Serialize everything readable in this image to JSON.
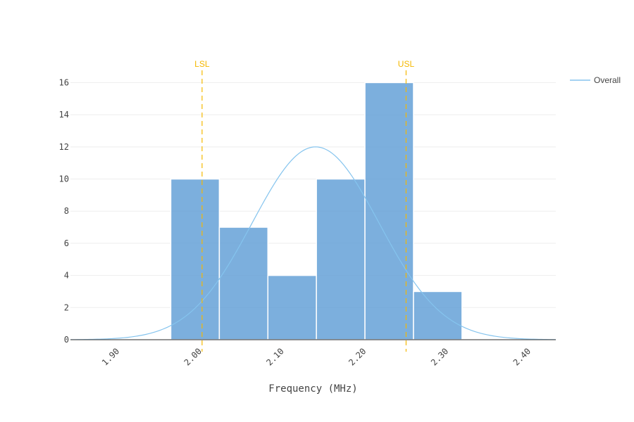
{
  "chart_data": {
    "type": "bar",
    "xlabel": "Frequency (MHz)",
    "ylabel": "",
    "xlim": [
      1.84,
      2.43
    ],
    "ylim": [
      0,
      17.2
    ],
    "x_ticks": [
      1.9,
      2.0,
      2.1,
      2.2,
      2.3,
      2.4
    ],
    "x_tick_labels": [
      "1.90",
      "2.00",
      "2.10",
      "2.20",
      "2.30",
      "2.40"
    ],
    "y_ticks": [
      0,
      2,
      4,
      6,
      8,
      10,
      12,
      14,
      16
    ],
    "y_tick_labels": [
      "0",
      "2",
      "4",
      "6",
      "8",
      "10",
      "12",
      "14",
      "16"
    ],
    "grid": true,
    "bins": [
      {
        "x0": 1.962,
        "x1": 2.021,
        "count": 10
      },
      {
        "x0": 2.021,
        "x1": 2.08,
        "count": 7
      },
      {
        "x0": 2.08,
        "x1": 2.139,
        "count": 4
      },
      {
        "x0": 2.139,
        "x1": 2.198,
        "count": 10
      },
      {
        "x0": 2.198,
        "x1": 2.257,
        "count": 16
      },
      {
        "x0": 2.257,
        "x1": 2.316,
        "count": 3
      }
    ],
    "bar_color": "#5b9bd5",
    "series": [
      {
        "name": "Overall",
        "type": "line",
        "distribution": "normal",
        "mean": 2.138,
        "std": 0.077,
        "peak": 12.0,
        "color": "#85c4ee"
      }
    ],
    "spec_limits": [
      {
        "label": "LSL",
        "x": 2.0,
        "color": "#f5b800"
      },
      {
        "label": "USL",
        "x": 2.248,
        "color": "#f5b800"
      }
    ],
    "legend": {
      "position": "top-right",
      "entries": [
        "Overall"
      ]
    }
  }
}
